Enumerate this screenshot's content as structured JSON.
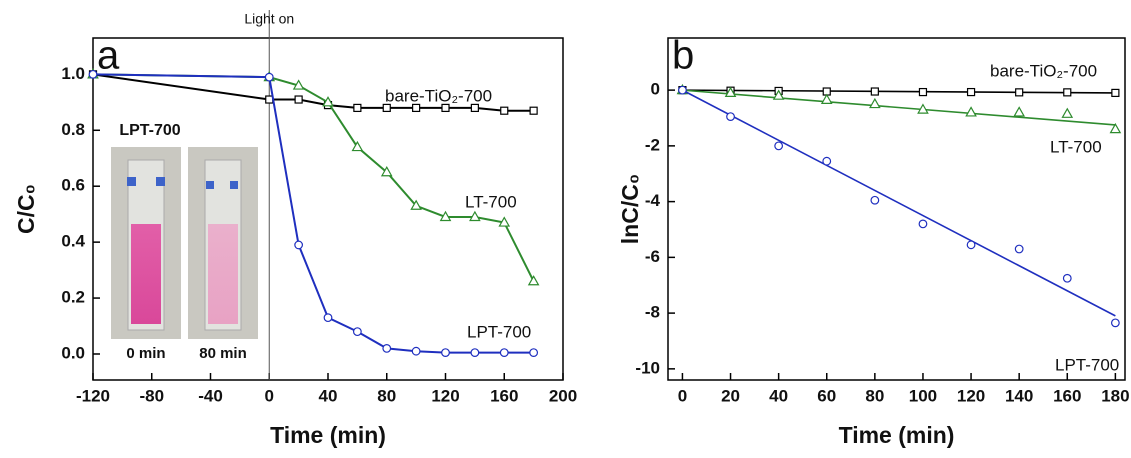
{
  "chart_data": [
    {
      "type": "line",
      "panel_label": "a",
      "event_label": "Light on",
      "inset_title": "LPT-700",
      "inset_labels": [
        "0 min",
        "80 min"
      ],
      "x_label": "Time (min)",
      "y_label": "C/C₀",
      "x": [
        -120,
        0,
        20,
        40,
        60,
        80,
        100,
        120,
        140,
        160,
        180
      ],
      "xlim": [
        -120,
        200
      ],
      "xticks": [
        -120,
        -80,
        -40,
        0,
        40,
        80,
        120,
        160,
        200
      ],
      "ylim": [
        -0.093,
        1.13
      ],
      "yticks": [
        {
          "value": 0,
          "label": "0.0"
        },
        {
          "value": 0.2,
          "label": "0.2"
        },
        {
          "value": 0.4,
          "label": "0.4"
        },
        {
          "value": 0.6,
          "label": "0.6"
        },
        {
          "value": 0.8,
          "label": "0.8"
        },
        {
          "value": 1,
          "label": "1.0"
        }
      ],
      "series": [
        {
          "name": "bare-TiO₂-700",
          "color": "#000000",
          "marker": "square",
          "values": [
            1.0,
            0.91,
            0.91,
            0.89,
            0.88,
            0.88,
            0.88,
            0.88,
            0.88,
            0.87,
            0.87
          ]
        },
        {
          "name": "LT-700",
          "color": "#2e8b2e",
          "marker": "triangle",
          "values": [
            1.0,
            0.99,
            0.96,
            0.9,
            0.74,
            0.65,
            0.53,
            0.49,
            0.49,
            0.47,
            0.26
          ]
        },
        {
          "name": "LPT-700",
          "color": "#1f2fbf",
          "marker": "circle",
          "values": [
            1.0,
            0.99,
            0.39,
            0.13,
            0.08,
            0.02,
            0.01,
            0.005,
            0.005,
            0.005,
            0.005
          ]
        }
      ]
    },
    {
      "type": "scatter",
      "panel_label": "b",
      "x_label": "Time (min)",
      "y_label": "lnC/C₀",
      "x": [
        0,
        20,
        40,
        60,
        80,
        100,
        120,
        140,
        160,
        180
      ],
      "xlim": [
        -6,
        184
      ],
      "xticks": [
        0,
        20,
        40,
        60,
        80,
        100,
        120,
        140,
        160,
        180
      ],
      "ylim": [
        -10.4,
        1.87
      ],
      "yticks": [
        0,
        -2,
        -4,
        -6,
        -8,
        -10
      ],
      "fit_x": [
        0,
        180
      ],
      "series": [
        {
          "name": "bare-TiO₂-700",
          "color": "#000000",
          "marker": "square",
          "values": [
            0,
            -0.02,
            -0.03,
            -0.05,
            -0.05,
            -0.07,
            -0.07,
            -0.08,
            -0.08,
            -0.1
          ],
          "fit_values": [
            0,
            -0.1
          ]
        },
        {
          "name": "LT-700",
          "color": "#2e8b2e",
          "marker": "triangle",
          "values": [
            0,
            -0.1,
            -0.2,
            -0.35,
            -0.5,
            -0.7,
            -0.8,
            -0.8,
            -0.85,
            -1.4
          ],
          "fit_values": [
            0,
            -1.25
          ]
        },
        {
          "name": "LPT-700",
          "color": "#1f2fbf",
          "marker": "circle",
          "values": [
            0,
            -0.95,
            -2.0,
            -2.55,
            -3.95,
            -4.8,
            -5.55,
            -5.7,
            -6.75,
            -8.35
          ],
          "fit_values": [
            0,
            -8.1
          ]
        }
      ]
    }
  ]
}
